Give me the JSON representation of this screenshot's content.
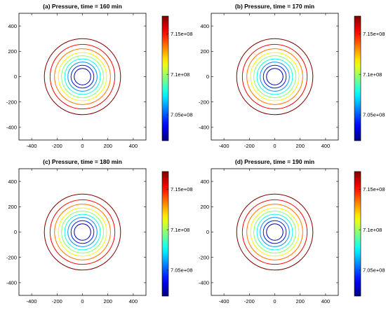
{
  "figure": {
    "panels": [
      {
        "title": "(a) Pressure, time = 160 min"
      },
      {
        "title": "(b) Pressure, time = 170 min"
      },
      {
        "title": "(c) Pressure, time = 180 min"
      },
      {
        "title": "(d) Pressure, time = 190 min"
      }
    ]
  },
  "chart_data": [
    {
      "type": "contour",
      "title": "(a) Pressure, time = 160 min",
      "xlim": [
        -500,
        500
      ],
      "ylim": [
        -500,
        500
      ],
      "x_ticks": [
        "-400",
        "-200",
        "0",
        "200",
        "400"
      ],
      "y_ticks": [
        "400",
        "200",
        "0",
        "-200",
        "-400"
      ],
      "contour_radii": [
        65,
        90,
        115,
        140,
        165,
        190,
        220,
        255,
        300
      ],
      "colorbar": {
        "range": [
          701800000.0,
          717200000.0
        ],
        "ticks": [
          "7.15e+08",
          "7.1e+08",
          "7.05e+08"
        ],
        "colormap": "jet"
      },
      "grid": false
    },
    {
      "type": "contour",
      "title": "(b) Pressure, time = 170 min",
      "xlim": [
        -500,
        500
      ],
      "ylim": [
        -500,
        500
      ],
      "x_ticks": [
        "-400",
        "-200",
        "0",
        "200",
        "400"
      ],
      "y_ticks": [
        "400",
        "200",
        "0",
        "-200",
        "-400"
      ],
      "contour_radii": [
        65,
        90,
        115,
        140,
        165,
        190,
        220,
        255,
        300
      ],
      "colorbar": {
        "range": [
          701800000.0,
          717200000.0
        ],
        "ticks": [
          "7.15e+08",
          "7.1e+08",
          "7.05e+08"
        ],
        "colormap": "jet"
      },
      "grid": false
    },
    {
      "type": "contour",
      "title": "(c) Pressure, time = 180 min",
      "xlim": [
        -500,
        500
      ],
      "ylim": [
        -500,
        500
      ],
      "x_ticks": [
        "-400",
        "-200",
        "0",
        "200",
        "400"
      ],
      "y_ticks": [
        "400",
        "200",
        "0",
        "-200",
        "-400"
      ],
      "contour_radii": [
        65,
        90,
        115,
        140,
        165,
        190,
        220,
        255,
        300
      ],
      "colorbar": {
        "range": [
          701800000.0,
          717200000.0
        ],
        "ticks": [
          "7.15e+08",
          "7.1e+08",
          "7.05e+08"
        ],
        "colormap": "jet"
      },
      "grid": false
    },
    {
      "type": "contour",
      "title": "(d) Pressure, time = 190 min",
      "xlim": [
        -500,
        500
      ],
      "ylim": [
        -500,
        500
      ],
      "x_ticks": [
        "-400",
        "-200",
        "0",
        "200",
        "400"
      ],
      "y_ticks": [
        "400",
        "200",
        "0",
        "-200",
        "-400"
      ],
      "contour_radii": [
        65,
        90,
        115,
        140,
        165,
        190,
        220,
        255,
        300
      ],
      "colorbar": {
        "range": [
          701800000.0,
          717200000.0
        ],
        "ticks": [
          "7.15e+08",
          "7.1e+08",
          "7.05e+08"
        ],
        "colormap": "jet"
      },
      "grid": false
    }
  ]
}
